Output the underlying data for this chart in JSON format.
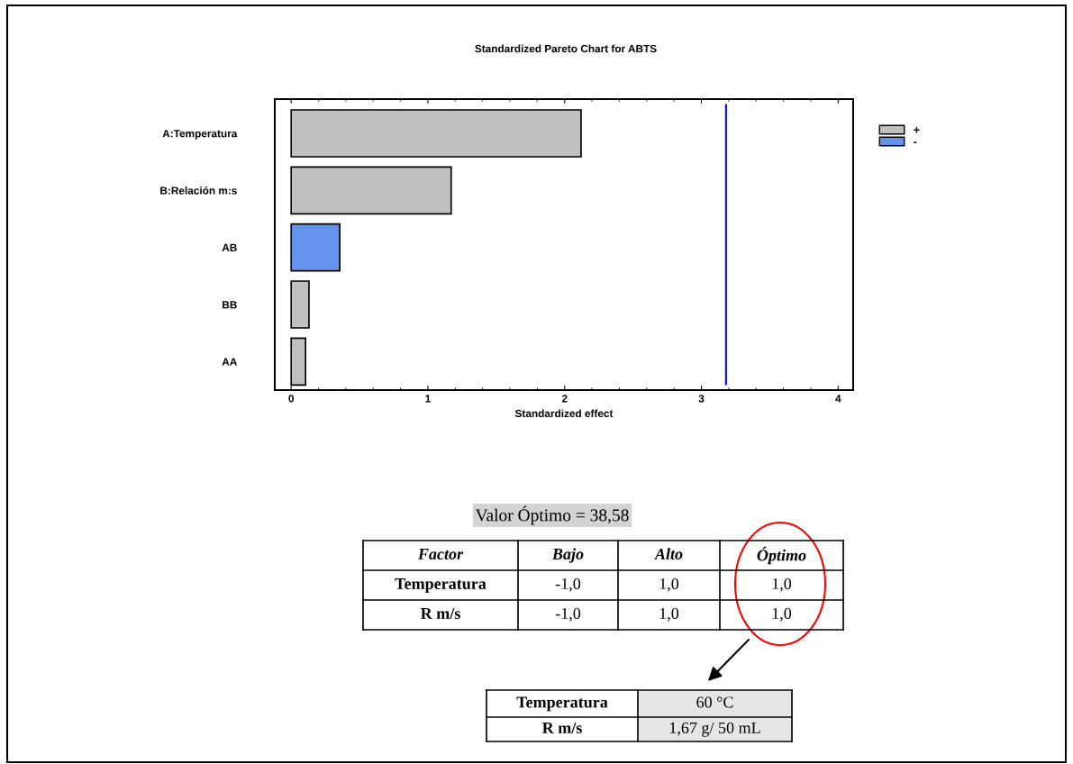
{
  "chart_data": {
    "type": "bar",
    "orientation": "horizontal",
    "title": "Standardized Pareto Chart for ABTS",
    "xlabel": "Standardized effect",
    "categories": [
      "A:Temperatura",
      "B:Relación m:s",
      "AB",
      "BB",
      "AA"
    ],
    "series": [
      {
        "name": "+",
        "color": "#c0c0c0",
        "values": [
          2.12,
          1.17,
          null,
          0.13,
          0.105
        ]
      },
      {
        "name": "-",
        "color": "#6495ed",
        "values": [
          null,
          null,
          0.355,
          null,
          null
        ]
      }
    ],
    "xlim": [
      -0.12,
      4.11
    ],
    "xticks": [
      0,
      1,
      2,
      3,
      4
    ],
    "ref_lines": [
      {
        "axis": "x",
        "value": 3.18,
        "color": "#0000ff"
      }
    ],
    "legend": "top right",
    "grid": false,
    "annotations": [
      "Valor Óptimo = 38,58",
      "Factor",
      "Bajo",
      "Alto",
      "Óptimo",
      "Temperatura",
      "-1,0",
      "1,0",
      "1,0",
      "R m/s",
      "-1,0",
      "1,0",
      "1,0",
      "Temperatura",
      "60 °C",
      "R m/s",
      "1,67 g/ 50 mL"
    ]
  }
}
